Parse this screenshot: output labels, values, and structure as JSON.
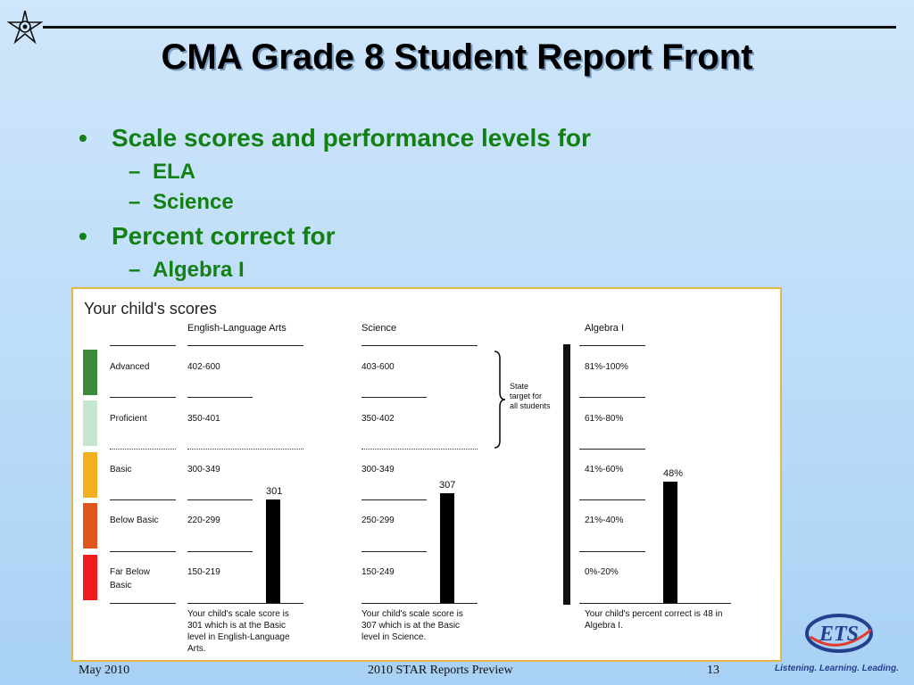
{
  "slide": {
    "title": "CMA Grade 8 Student Report Front",
    "bullets": [
      {
        "text": "Scale scores and performance levels for",
        "sub": [
          "ELA",
          "Science"
        ]
      },
      {
        "text": "Percent correct for",
        "sub": [
          "Algebra I"
        ]
      }
    ]
  },
  "report": {
    "heading": "Your child's scores",
    "levels": [
      "Advanced",
      "Proficient",
      "Basic",
      "Below Basic",
      "Far Below Basic"
    ],
    "level_colors": [
      "#3c8a3c",
      "#c6e6d0",
      "#f2b01e",
      "#e0571e",
      "#ee1c1c"
    ],
    "ela": {
      "title": "English-Language Arts",
      "ranges": [
        "402-600",
        "350-401",
        "300-349",
        "220-299",
        "150-219"
      ],
      "score": "301",
      "score_value": 301,
      "caption": "Your child's scale score is 301 which is at the Basic level in English-Language Arts."
    },
    "science": {
      "title": "Science",
      "ranges": [
        "403-600",
        "350-402",
        "300-349",
        "250-299",
        "150-249"
      ],
      "score": "307",
      "score_value": 307,
      "caption": "Your child's scale score is 307 which is at the Basic level in Science."
    },
    "algebra": {
      "title": "Algebra I",
      "ranges": [
        "81%-100%",
        "61%-80%",
        "41%-60%",
        "21%-40%",
        "0%-20%"
      ],
      "score": "48%",
      "score_value": 48,
      "caption": "Your child's percent correct is 48 in Algebra I."
    },
    "state_target": "State target for all students"
  },
  "footer": {
    "date": "May 2010",
    "center": "2010 STAR Reports Preview",
    "page": "13",
    "tagline": "Listening. Learning. Leading.",
    "logo_text": "ETS"
  },
  "icons": {
    "corner": "star-compass-icon",
    "brace": "right-brace-icon"
  }
}
